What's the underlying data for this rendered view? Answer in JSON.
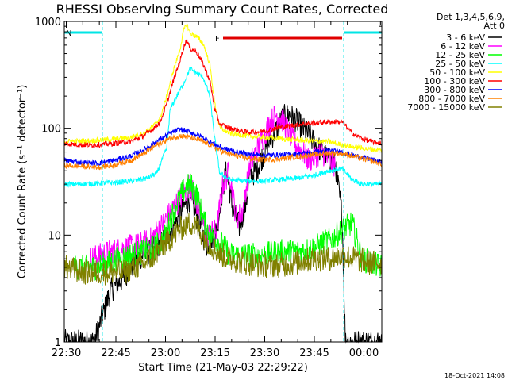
{
  "chart_data": {
    "type": "line",
    "title": "RHESSI Observing Summary Count Rates, Corrected",
    "xlabel": "Start Time (21-May-03 22:29:22)",
    "ylabel": "Corrected Count Rate (s⁻¹ detector⁻¹)",
    "ylog": true,
    "ylim": [
      1,
      1000
    ],
    "xlim_minutes": [
      0,
      96
    ],
    "x_ticks": [
      {
        "m": 0.6,
        "label": "22:30"
      },
      {
        "m": 15.6,
        "label": "22:45"
      },
      {
        "m": 30.6,
        "label": "23:00"
      },
      {
        "m": 45.6,
        "label": "23:15"
      },
      {
        "m": 60.6,
        "label": "23:30"
      },
      {
        "m": 75.6,
        "label": "23:45"
      },
      {
        "m": 90.6,
        "label": "00:00"
      }
    ],
    "y_ticks": [
      {
        "v": 1,
        "label": "1"
      },
      {
        "v": 10,
        "label": "10"
      },
      {
        "v": 100,
        "label": "100"
      },
      {
        "v": 1000,
        "label": "1000"
      }
    ],
    "legend_header": [
      "Det 1,3,4,5,6,9,",
      "Att 0"
    ],
    "legend_position": "top-right, outside plot",
    "timestamp": "18-Oct-2021 14:08",
    "annotations": [
      {
        "label": "N",
        "type": "night",
        "color": "#00e5e5",
        "segments": [
          [
            0,
            11.5
          ],
          [
            84.5,
            96
          ]
        ]
      },
      {
        "label": "F",
        "type": "flare",
        "color": "#e00000",
        "segments": [
          [
            48,
            84
          ]
        ]
      }
    ],
    "vertical_markers_minutes": [
      11.5,
      84.5
    ],
    "series": [
      {
        "name": "3 - 6 keV",
        "color": "#000000",
        "points": [
          [
            0,
            1
          ],
          [
            9,
            1
          ],
          [
            14,
            3
          ],
          [
            18,
            4
          ],
          [
            22,
            6
          ],
          [
            26,
            7
          ],
          [
            30,
            9
          ],
          [
            33,
            12
          ],
          [
            36,
            18
          ],
          [
            38,
            22
          ],
          [
            40,
            15
          ],
          [
            43,
            8
          ],
          [
            46,
            11
          ],
          [
            48,
            28
          ],
          [
            49,
            40
          ],
          [
            51,
            17
          ],
          [
            53,
            12
          ],
          [
            55,
            20
          ],
          [
            56,
            35
          ],
          [
            58,
            40
          ],
          [
            60,
            55
          ],
          [
            62,
            75
          ],
          [
            64,
            95
          ],
          [
            66,
            125
          ],
          [
            68,
            135
          ],
          [
            70,
            120
          ],
          [
            72,
            100
          ],
          [
            74,
            85
          ],
          [
            76,
            70
          ],
          [
            78,
            60
          ],
          [
            80,
            50
          ],
          [
            82,
            45
          ],
          [
            84,
            15
          ],
          [
            85,
            1
          ],
          [
            90,
            1
          ],
          [
            96,
            1
          ]
        ]
      },
      {
        "name": "6 - 12 keV",
        "color": "#ff00ff",
        "points": [
          [
            8,
            6
          ],
          [
            14,
            7
          ],
          [
            18,
            7.5
          ],
          [
            22,
            8
          ],
          [
            26,
            9
          ],
          [
            30,
            13
          ],
          [
            33,
            18
          ],
          [
            36,
            24
          ],
          [
            38,
            30
          ],
          [
            40,
            20
          ],
          [
            43,
            10
          ],
          [
            46,
            11
          ],
          [
            48,
            30
          ],
          [
            50,
            40
          ],
          [
            52,
            14
          ],
          [
            54,
            17
          ],
          [
            56,
            45
          ],
          [
            58,
            60
          ],
          [
            60,
            80
          ],
          [
            62,
            110
          ],
          [
            64,
            135
          ],
          [
            66,
            120
          ],
          [
            68,
            90
          ],
          [
            70,
            70
          ],
          [
            72,
            60
          ],
          [
            74,
            50
          ],
          [
            76,
            55
          ],
          [
            78,
            60
          ],
          [
            80,
            50
          ],
          [
            82,
            45
          ]
        ]
      },
      {
        "name": "12 - 25 keV",
        "color": "#00ff00",
        "points": [
          [
            3,
            5
          ],
          [
            10,
            5
          ],
          [
            16,
            6
          ],
          [
            20,
            6.5
          ],
          [
            24,
            7
          ],
          [
            28,
            8
          ],
          [
            30,
            9
          ],
          [
            32,
            14
          ],
          [
            34,
            20
          ],
          [
            36,
            26
          ],
          [
            38,
            30
          ],
          [
            40,
            24
          ],
          [
            42,
            14
          ],
          [
            44,
            10
          ],
          [
            46,
            9
          ],
          [
            48,
            8
          ],
          [
            50,
            6.5
          ],
          [
            55,
            6.5
          ],
          [
            60,
            6.5
          ],
          [
            65,
            7
          ],
          [
            70,
            7
          ],
          [
            75,
            7.5
          ],
          [
            80,
            9
          ],
          [
            84,
            11
          ],
          [
            87,
            13
          ],
          [
            90,
            6
          ],
          [
            96,
            5
          ]
        ]
      },
      {
        "name": "25 - 50 keV",
        "color": "#00ffff",
        "points": [
          [
            0,
            30
          ],
          [
            5,
            30
          ],
          [
            10,
            30.5
          ],
          [
            15,
            31
          ],
          [
            20,
            32
          ],
          [
            25,
            34
          ],
          [
            28,
            38
          ],
          [
            30,
            55
          ],
          [
            31,
            65
          ],
          [
            32,
            150
          ],
          [
            34,
            200
          ],
          [
            36,
            260
          ],
          [
            38,
            360
          ],
          [
            40,
            330
          ],
          [
            42,
            300
          ],
          [
            44,
            200
          ],
          [
            45.5,
            80
          ],
          [
            47,
            38
          ],
          [
            50,
            33
          ],
          [
            55,
            32
          ],
          [
            60,
            32
          ],
          [
            65,
            33
          ],
          [
            70,
            34
          ],
          [
            75,
            36
          ],
          [
            80,
            40
          ],
          [
            84,
            42
          ],
          [
            87,
            33
          ],
          [
            90,
            30
          ],
          [
            96,
            30
          ]
        ]
      },
      {
        "name": "50 - 100 keV",
        "color": "#ffff00",
        "points": [
          [
            0,
            75
          ],
          [
            5,
            76
          ],
          [
            10,
            77
          ],
          [
            15,
            79
          ],
          [
            20,
            82
          ],
          [
            24,
            90
          ],
          [
            27,
            105
          ],
          [
            29,
            125
          ],
          [
            31,
            200
          ],
          [
            33,
            350
          ],
          [
            35,
            550
          ],
          [
            36,
            800
          ],
          [
            37,
            950
          ],
          [
            38,
            780
          ],
          [
            40,
            720
          ],
          [
            42,
            620
          ],
          [
            44,
            400
          ],
          [
            45.5,
            170
          ],
          [
            47,
            100
          ],
          [
            50,
            90
          ],
          [
            55,
            85
          ],
          [
            60,
            82
          ],
          [
            65,
            80
          ],
          [
            70,
            78
          ],
          [
            75,
            76
          ],
          [
            80,
            75
          ],
          [
            84,
            70
          ],
          [
            90,
            65
          ],
          [
            96,
            62
          ]
        ]
      },
      {
        "name": "100 - 300 keV",
        "color": "#ff0000",
        "points": [
          [
            0,
            72
          ],
          [
            5,
            70
          ],
          [
            10,
            70
          ],
          [
            15,
            72
          ],
          [
            20,
            75
          ],
          [
            24,
            85
          ],
          [
            27,
            100
          ],
          [
            29,
            115
          ],
          [
            31,
            170
          ],
          [
            33,
            280
          ],
          [
            35,
            430
          ],
          [
            36,
            560
          ],
          [
            37,
            680
          ],
          [
            38,
            560
          ],
          [
            40,
            520
          ],
          [
            42,
            400
          ],
          [
            44,
            280
          ],
          [
            45.5,
            150
          ],
          [
            47,
            110
          ],
          [
            50,
            100
          ],
          [
            55,
            92
          ],
          [
            58,
            92
          ],
          [
            61,
            95
          ],
          [
            64,
            100
          ],
          [
            68,
            105
          ],
          [
            72,
            110
          ],
          [
            76,
            112
          ],
          [
            80,
            115
          ],
          [
            84,
            115
          ],
          [
            87,
            90
          ],
          [
            90,
            80
          ],
          [
            93,
            75
          ],
          [
            96,
            72
          ]
        ]
      },
      {
        "name": "300 - 800 keV",
        "color": "#0000ff",
        "points": [
          [
            0,
            50
          ],
          [
            5,
            48
          ],
          [
            10,
            47
          ],
          [
            15,
            50
          ],
          [
            20,
            55
          ],
          [
            24,
            63
          ],
          [
            28,
            75
          ],
          [
            32,
            90
          ],
          [
            35,
            98
          ],
          [
            38,
            92
          ],
          [
            41,
            85
          ],
          [
            44,
            75
          ],
          [
            48,
            65
          ],
          [
            52,
            60
          ],
          [
            56,
            57
          ],
          [
            60,
            56
          ],
          [
            64,
            56
          ],
          [
            68,
            57
          ],
          [
            72,
            58
          ],
          [
            76,
            60
          ],
          [
            80,
            62
          ],
          [
            84,
            60
          ],
          [
            88,
            55
          ],
          [
            92,
            52
          ],
          [
            96,
            48
          ]
        ]
      },
      {
        "name": "800 - 7000 keV",
        "color": "#ff8000",
        "points": [
          [
            0,
            45
          ],
          [
            5,
            44
          ],
          [
            10,
            43
          ],
          [
            15,
            45
          ],
          [
            20,
            50
          ],
          [
            24,
            58
          ],
          [
            28,
            70
          ],
          [
            32,
            80
          ],
          [
            35,
            85
          ],
          [
            38,
            82
          ],
          [
            41,
            77
          ],
          [
            44,
            70
          ],
          [
            48,
            60
          ],
          [
            52,
            55
          ],
          [
            56,
            52
          ],
          [
            60,
            51
          ],
          [
            64,
            51
          ],
          [
            68,
            53
          ],
          [
            72,
            55
          ],
          [
            76,
            57
          ],
          [
            80,
            59
          ],
          [
            84,
            58
          ],
          [
            88,
            54
          ],
          [
            92,
            50
          ],
          [
            96,
            46
          ]
        ]
      },
      {
        "name": "7000 - 15000 keV",
        "color": "#808000",
        "points": [
          [
            0,
            5
          ],
          [
            6,
            4.5
          ],
          [
            10,
            4.5
          ],
          [
            14,
            4.5
          ],
          [
            18,
            4.5
          ],
          [
            22,
            5
          ],
          [
            26,
            6
          ],
          [
            30,
            8
          ],
          [
            33,
            10
          ],
          [
            36,
            12
          ],
          [
            38,
            13
          ],
          [
            40,
            12
          ],
          [
            43,
            9
          ],
          [
            46,
            7
          ],
          [
            50,
            6
          ],
          [
            55,
            5.5
          ],
          [
            60,
            5.2
          ],
          [
            65,
            5.2
          ],
          [
            70,
            5.5
          ],
          [
            75,
            6
          ],
          [
            80,
            6
          ],
          [
            84,
            6.5
          ],
          [
            88,
            6
          ],
          [
            92,
            5.5
          ],
          [
            96,
            5.5
          ]
        ]
      }
    ]
  }
}
